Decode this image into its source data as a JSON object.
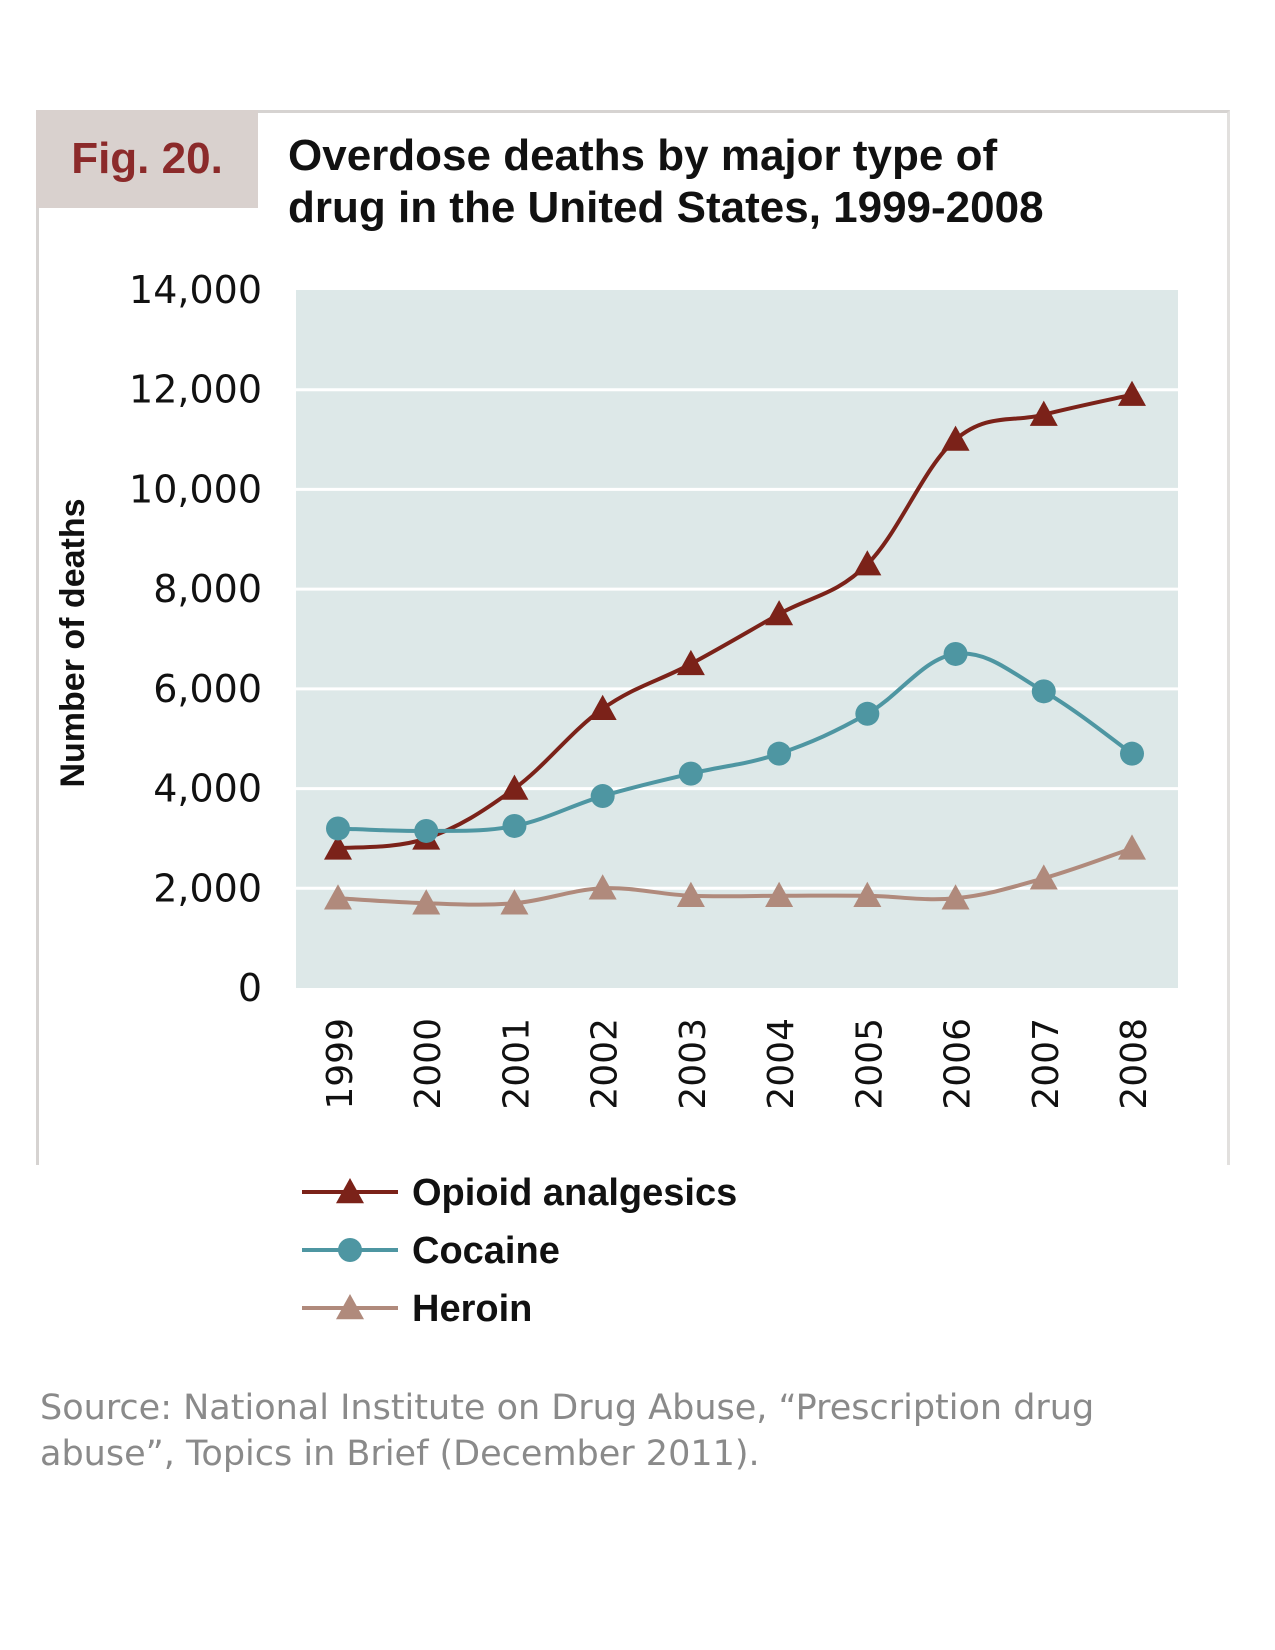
{
  "figure": {
    "label": "Fig. 20.",
    "title_line1": "Overdose deaths by major type of",
    "title_line2": "drug in the United States, 1999-2008",
    "source": "Source: National Institute on Drug Abuse, “Prescription drug abuse”, Topics in Brief (December 2011)."
  },
  "chart_data": {
    "type": "line",
    "title": "Overdose deaths by major type of drug in the United States, 1999-2008",
    "xlabel": "",
    "ylabel": "Number of deaths",
    "ylim": [
      0,
      14000
    ],
    "y_ticks": [
      0,
      2000,
      4000,
      6000,
      8000,
      10000,
      12000,
      14000
    ],
    "y_tick_labels": [
      "0",
      "2,000",
      "4,000",
      "6,000",
      "8,000",
      "10,000",
      "12,000",
      "14,000"
    ],
    "categories": [
      "1999",
      "2000",
      "2001",
      "2002",
      "2003",
      "2004",
      "2005",
      "2006",
      "2007",
      "2008"
    ],
    "grid": true,
    "legend_position": "bottom-left",
    "series": [
      {
        "name": "Opioid analgesics",
        "marker": "triangle",
        "color": "#7b2219",
        "values": [
          2800,
          3000,
          4000,
          5600,
          6500,
          7500,
          8500,
          11000,
          11500,
          11900
        ]
      },
      {
        "name": "Cocaine",
        "marker": "circle",
        "color": "#4e96a2",
        "values": [
          3200,
          3150,
          3250,
          3850,
          4300,
          4700,
          5500,
          6700,
          5950,
          4700
        ]
      },
      {
        "name": "Heroin",
        "marker": "triangle",
        "color": "#b08a7c",
        "values": [
          1800,
          1700,
          1700,
          2000,
          1850,
          1850,
          1850,
          1800,
          2200,
          2800
        ]
      }
    ]
  }
}
